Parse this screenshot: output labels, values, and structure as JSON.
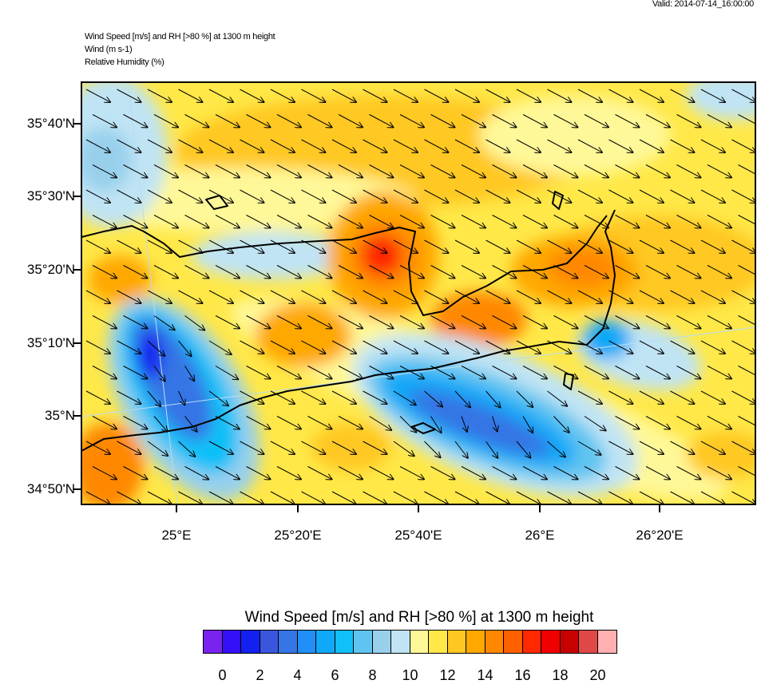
{
  "header": {
    "valid": "Valid: 2014-07-14_16:00:00",
    "line1": "Wind Speed [m/s] and RH [>80 %] at 1300 m height",
    "line2": "Wind   (m s-1)",
    "line3": "Relative Humidity   (%)"
  },
  "axes": {
    "lat_labels": [
      "35°40'N",
      "35°30'N",
      "35°20'N",
      "35°10'N",
      "35°N",
      "34°50'N"
    ],
    "lon_labels": [
      "25°E",
      "25°20'E",
      "25°40'E",
      "26°E",
      "26°20'E"
    ]
  },
  "colorbar": {
    "title": "Wind Speed [m/s] and RH [>80 %] at 1300 m height",
    "labels": [
      "0",
      "2",
      "4",
      "6",
      "8",
      "10",
      "12",
      "14",
      "16",
      "18",
      "20"
    ],
    "levels_step": 1,
    "colors": [
      "#7a22ee",
      "#3410f8",
      "#1420f0",
      "#3a56dc",
      "#3575e5",
      "#2090f8",
      "#10a8f8",
      "#10c0f8",
      "#60c4f0",
      "#98d0ec",
      "#c0e4f4",
      "#fff898",
      "#ffe848",
      "#ffc820",
      "#ffa800",
      "#ff8800",
      "#ff6000",
      "#ff2800",
      "#f00000",
      "#c80000",
      "#e04848",
      "#ffb0b0"
    ]
  },
  "wind": {
    "direction_deg_from_north": 300,
    "note_units": "m s-1"
  }
}
